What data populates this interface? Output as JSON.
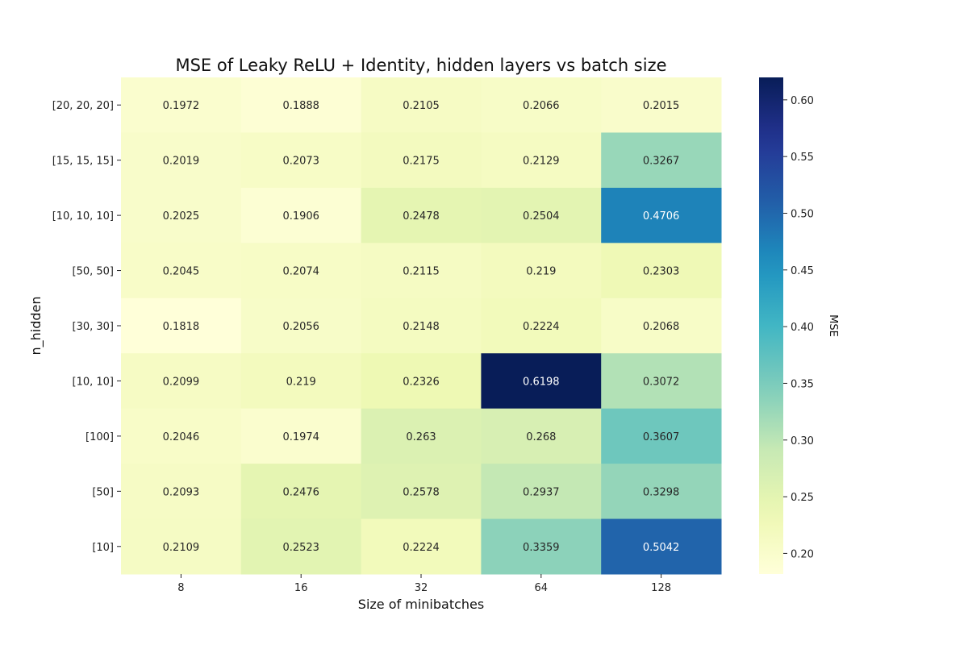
{
  "chart_data": {
    "type": "heatmap",
    "title": "MSE of Leaky ReLU + Identity, hidden layers vs batch size",
    "xlabel": "Size of minibatches",
    "ylabel": "n_hidden",
    "x_categories": [
      "8",
      "16",
      "32",
      "64",
      "128"
    ],
    "y_categories": [
      "[20, 20, 20]",
      "[15, 15, 15]",
      "[10, 10, 10]",
      "[50, 50]",
      "[30, 30]",
      "[10, 10]",
      "[100]",
      "[50]",
      "[10]"
    ],
    "values": [
      [
        0.1972,
        0.1888,
        0.2105,
        0.2066,
        0.2015
      ],
      [
        0.2019,
        0.2073,
        0.2175,
        0.2129,
        0.3267
      ],
      [
        0.2025,
        0.1906,
        0.2478,
        0.2504,
        0.4706
      ],
      [
        0.2045,
        0.2074,
        0.2115,
        0.219,
        0.2303
      ],
      [
        0.1818,
        0.2056,
        0.2148,
        0.2224,
        0.2068
      ],
      [
        0.2099,
        0.219,
        0.2326,
        0.6198,
        0.3072
      ],
      [
        0.2046,
        0.1974,
        0.263,
        0.268,
        0.3607
      ],
      [
        0.2093,
        0.2476,
        0.2578,
        0.2937,
        0.3298
      ],
      [
        0.2109,
        0.2523,
        0.2224,
        0.3359,
        0.5042
      ]
    ],
    "cell_labels": [
      [
        "0.1972",
        "0.1888",
        "0.2105",
        "0.2066",
        "0.2015"
      ],
      [
        "0.2019",
        "0.2073",
        "0.2175",
        "0.2129",
        "0.3267"
      ],
      [
        "0.2025",
        "0.1906",
        "0.2478",
        "0.2504",
        "0.4706"
      ],
      [
        "0.2045",
        "0.2074",
        "0.2115",
        "0.219",
        "0.2303"
      ],
      [
        "0.1818",
        "0.2056",
        "0.2148",
        "0.2224",
        "0.2068"
      ],
      [
        "0.2099",
        "0.219",
        "0.2326",
        "0.6198",
        "0.3072"
      ],
      [
        "0.2046",
        "0.1974",
        "0.263",
        "0.268",
        "0.3607"
      ],
      [
        "0.2093",
        "0.2476",
        "0.2578",
        "0.2937",
        "0.3298"
      ],
      [
        "0.2109",
        "0.2523",
        "0.2224",
        "0.3359",
        "0.5042"
      ]
    ],
    "colorbar": {
      "label": "MSE",
      "colormap": "YlGnBu",
      "range": [
        0.1818,
        0.6198
      ],
      "ticks": [
        "0.20",
        "0.25",
        "0.30",
        "0.35",
        "0.40",
        "0.45",
        "0.50",
        "0.55",
        "0.60"
      ]
    },
    "grid": false
  }
}
